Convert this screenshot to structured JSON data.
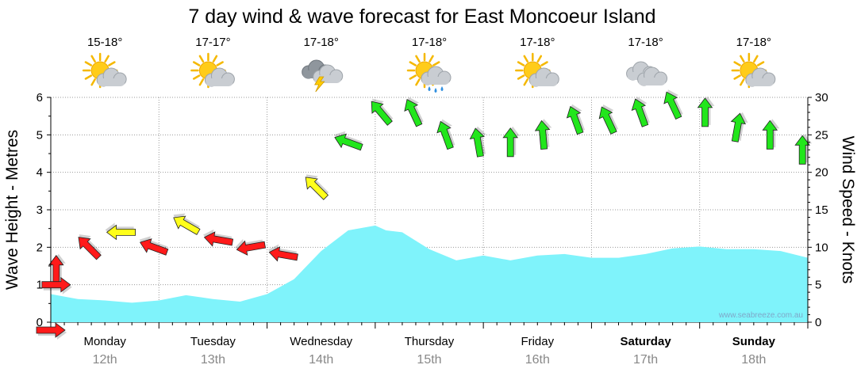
{
  "chart_data": {
    "type": "area",
    "title": "7 day wind & wave forecast for East Moncoeur Island",
    "ylabel_left": "Wave Height - Metres",
    "ylabel_right": "Wind Speed - Knots",
    "left_axis": {
      "ylim": [
        0,
        6
      ],
      "ticks": [
        "0",
        "1",
        "2",
        "3",
        "4",
        "5",
        "6"
      ]
    },
    "right_axis": {
      "ylim": [
        0,
        30
      ],
      "ticks": [
        "0",
        "5",
        "10",
        "15",
        "20",
        "25",
        "30"
      ]
    },
    "grid": true,
    "colors": {
      "wave_fill": "#7ff3fb",
      "wind_low": "#ff1a1a",
      "wind_mid": "#ffff1a",
      "wind_high": "#22e61c",
      "grid": "#9a9a9a"
    },
    "days": [
      {
        "name": "Monday",
        "date": "12th",
        "temp": "15-18°",
        "icon": "partly-cloudy-icon",
        "bold": false
      },
      {
        "name": "Tuesday",
        "date": "13th",
        "temp": "17-17°",
        "icon": "partly-cloudy-icon",
        "bold": false
      },
      {
        "name": "Wednesday",
        "date": "14th",
        "temp": "17-18°",
        "icon": "thunderstorm-icon",
        "bold": false
      },
      {
        "name": "Thursday",
        "date": "15th",
        "temp": "17-18°",
        "icon": "sun-showers-icon",
        "bold": false
      },
      {
        "name": "Friday",
        "date": "16th",
        "temp": "17-18°",
        "icon": "partly-cloudy-icon",
        "bold": false
      },
      {
        "name": "Saturday",
        "date": "17th",
        "temp": "17-18°",
        "icon": "cloudy-icon",
        "bold": true
      },
      {
        "name": "Sunday",
        "date": "18th",
        "temp": "17-18°",
        "icon": "partly-cloudy-icon",
        "bold": true
      }
    ],
    "x_range_days": [
      0,
      7
    ],
    "wave_height_m": {
      "x_days": [
        0.0,
        0.25,
        0.5,
        0.75,
        1.0,
        1.25,
        1.5,
        1.75,
        2.0,
        2.25,
        2.5,
        2.75,
        3.0,
        3.1,
        3.25,
        3.5,
        3.75,
        4.0,
        4.25,
        4.5,
        4.75,
        5.0,
        5.25,
        5.5,
        5.75,
        6.0,
        6.25,
        6.5,
        6.75,
        7.0
      ],
      "values": [
        0.75,
        0.62,
        0.58,
        0.52,
        0.58,
        0.72,
        0.62,
        0.55,
        0.75,
        1.15,
        1.9,
        2.45,
        2.58,
        2.45,
        2.4,
        1.95,
        1.65,
        1.78,
        1.65,
        1.78,
        1.82,
        1.72,
        1.72,
        1.82,
        1.97,
        2.02,
        1.95,
        1.95,
        1.9,
        1.72
      ]
    },
    "wind": {
      "x_days": [
        0.05,
        0.35,
        0.65,
        0.95,
        1.25,
        1.55,
        1.85,
        2.15,
        2.45,
        2.75,
        3.05,
        3.35,
        3.65,
        3.95,
        4.25,
        4.55,
        4.85,
        5.15,
        5.45,
        5.75,
        6.05,
        6.35,
        6.65,
        6.95
      ],
      "speed_knots": [
        7,
        10,
        12,
        10,
        13,
        11,
        10,
        9,
        18,
        24,
        28,
        28,
        25,
        24,
        24,
        25,
        27,
        27,
        28,
        29,
        28,
        26,
        25,
        23
      ],
      "direction_deg": [
        270,
        225,
        180,
        200,
        210,
        190,
        170,
        190,
        225,
        200,
        230,
        245,
        250,
        260,
        270,
        265,
        250,
        245,
        250,
        245,
        270,
        280,
        270,
        270
      ]
    }
  },
  "watermark": "www.seabreeze.com.au"
}
